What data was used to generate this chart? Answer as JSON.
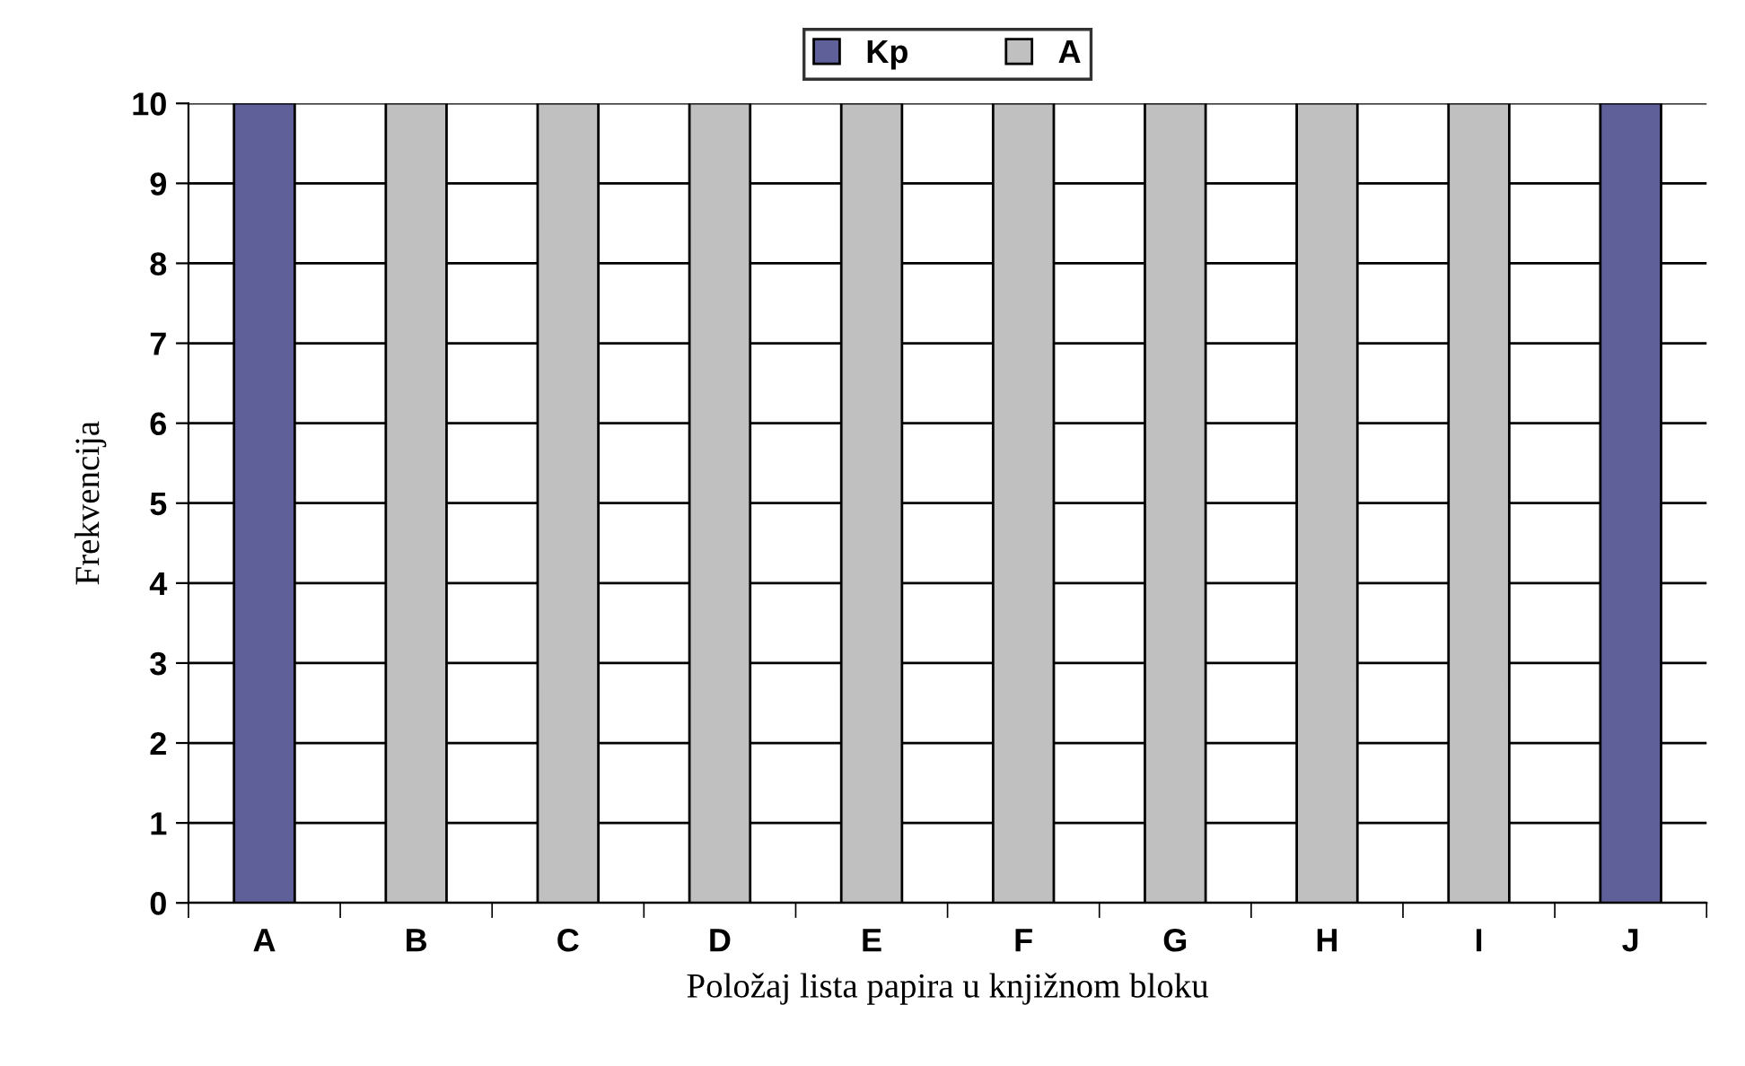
{
  "chart_data": {
    "type": "bar",
    "stacked": true,
    "xlabel": "Položaj lista papira u knjižnom bloku",
    "ylabel": "Frekvencija",
    "categories": [
      "A",
      "B",
      "C",
      "D",
      "E",
      "F",
      "G",
      "H",
      "I",
      "J"
    ],
    "series": [
      {
        "name": "Kp",
        "color": "#5f5f9a",
        "values": [
          10,
          null,
          null,
          null,
          null,
          null,
          null,
          null,
          null,
          10
        ]
      },
      {
        "name": "A",
        "color": "#c0c0c0",
        "values": [
          null,
          10,
          10,
          10,
          10,
          10,
          10,
          10,
          10,
          null
        ]
      }
    ],
    "ylim": [
      0,
      10
    ],
    "yticks": [
      0,
      1,
      2,
      3,
      4,
      5,
      6,
      7,
      8,
      9,
      10
    ],
    "grid": "y",
    "legend": "top"
  }
}
